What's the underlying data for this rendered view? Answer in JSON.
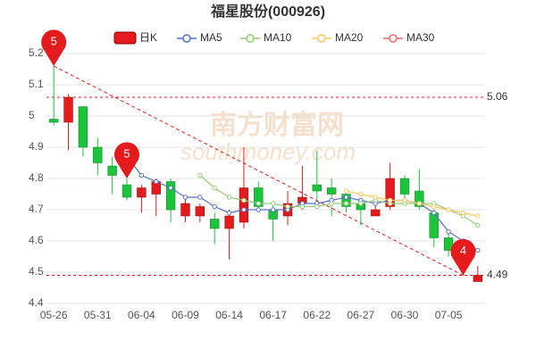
{
  "chart_data": {
    "type": "candlestick",
    "title": "福星股份(000926)",
    "watermark": [
      "南方财富网",
      "southmoney.com"
    ],
    "categories": [
      "05-26",
      null,
      null,
      "05-31",
      null,
      null,
      "06-04",
      null,
      null,
      "06-09",
      null,
      null,
      "06-14",
      null,
      null,
      "06-17",
      null,
      null,
      "06-22",
      null,
      null,
      "06-27",
      null,
      null,
      "06-30",
      null,
      null,
      "07-05",
      null,
      null
    ],
    "candle_name": "日K",
    "up_color": "#e41a1c",
    "down_color": "#1cc43c",
    "open": [
      4.99,
      4.98,
      5.03,
      4.9,
      4.84,
      4.78,
      4.74,
      4.75,
      4.79,
      4.68,
      4.68,
      4.67,
      4.64,
      4.66,
      4.77,
      4.7,
      4.68,
      4.72,
      4.78,
      4.77,
      4.75,
      4.72,
      4.68,
      4.71,
      4.8,
      4.76,
      4.69,
      4.61,
      4.52,
      4.47
    ],
    "close": [
      4.98,
      5.06,
      4.9,
      4.85,
      4.81,
      4.74,
      4.77,
      4.79,
      4.7,
      4.72,
      4.71,
      4.64,
      4.68,
      4.77,
      4.71,
      4.67,
      4.72,
      4.74,
      4.76,
      4.75,
      4.71,
      4.7,
      4.7,
      4.8,
      4.75,
      4.71,
      4.61,
      4.57,
      4.55,
      4.49
    ],
    "high": [
      5.16,
      5.07,
      5.03,
      4.93,
      4.87,
      4.8,
      4.78,
      4.8,
      4.8,
      4.74,
      4.72,
      4.69,
      4.7,
      4.9,
      4.79,
      4.72,
      4.76,
      4.84,
      4.89,
      4.8,
      4.76,
      4.72,
      4.72,
      4.85,
      4.81,
      4.83,
      4.7,
      4.63,
      4.56,
      4.52
    ],
    "low": [
      4.97,
      4.89,
      4.87,
      4.81,
      4.75,
      4.73,
      4.69,
      4.68,
      4.66,
      4.66,
      4.66,
      4.59,
      4.54,
      4.64,
      4.7,
      4.6,
      4.65,
      4.7,
      4.72,
      4.68,
      4.69,
      4.65,
      4.68,
      4.7,
      4.72,
      4.7,
      4.58,
      4.55,
      4.49,
      4.47
    ],
    "series": [
      {
        "name": "MA5",
        "color": "#5470c6",
        "values": [
          null,
          null,
          null,
          null,
          null,
          4.87,
          4.81,
          4.79,
          4.77,
          4.74,
          4.74,
          4.71,
          4.69,
          4.7,
          4.7,
          4.7,
          4.7,
          4.72,
          4.72,
          4.73,
          4.74,
          4.73,
          4.72,
          4.73,
          4.73,
          4.72,
          4.69,
          4.63,
          4.6,
          4.57
        ]
      },
      {
        "name": "MA10",
        "color": "#91cc75",
        "values": [
          null,
          null,
          null,
          null,
          null,
          null,
          null,
          null,
          null,
          null,
          4.81,
          4.77,
          4.74,
          4.73,
          4.72,
          4.72,
          4.71,
          4.71,
          4.71,
          4.72,
          4.72,
          4.72,
          4.73,
          4.72,
          4.72,
          4.72,
          4.72,
          4.7,
          4.68,
          4.65
        ]
      },
      {
        "name": "MA20",
        "color": "#fac858",
        "values": [
          null,
          null,
          null,
          null,
          null,
          null,
          null,
          null,
          null,
          null,
          null,
          null,
          null,
          null,
          null,
          null,
          null,
          null,
          null,
          null,
          4.76,
          4.75,
          4.74,
          4.73,
          4.73,
          4.72,
          4.71,
          4.7,
          4.69,
          4.68
        ]
      },
      {
        "name": "MA30",
        "color": "#ee6666",
        "values": [
          null,
          null,
          null,
          null,
          null,
          null,
          null,
          null,
          null,
          null,
          null,
          null,
          null,
          null,
          null,
          null,
          null,
          null,
          null,
          null,
          null,
          null,
          null,
          null,
          null,
          null,
          null,
          null,
          null,
          null
        ]
      }
    ],
    "markers": [
      {
        "label": "5",
        "index": 0,
        "value": 5.16
      },
      {
        "label": "5",
        "index": 5,
        "value": 4.8
      },
      {
        "label": "4",
        "index": 28,
        "value": 4.49
      }
    ],
    "hlines": [
      5.06,
      4.49
    ],
    "trendline": [
      [
        0,
        5.16
      ],
      [
        28,
        4.49
      ]
    ],
    "ylim": [
      4.4,
      5.2
    ],
    "yticks": [
      5.2,
      5.1,
      5,
      4.9,
      4.8,
      4.7,
      4.6,
      4.5,
      4.4
    ],
    "grid": true
  }
}
